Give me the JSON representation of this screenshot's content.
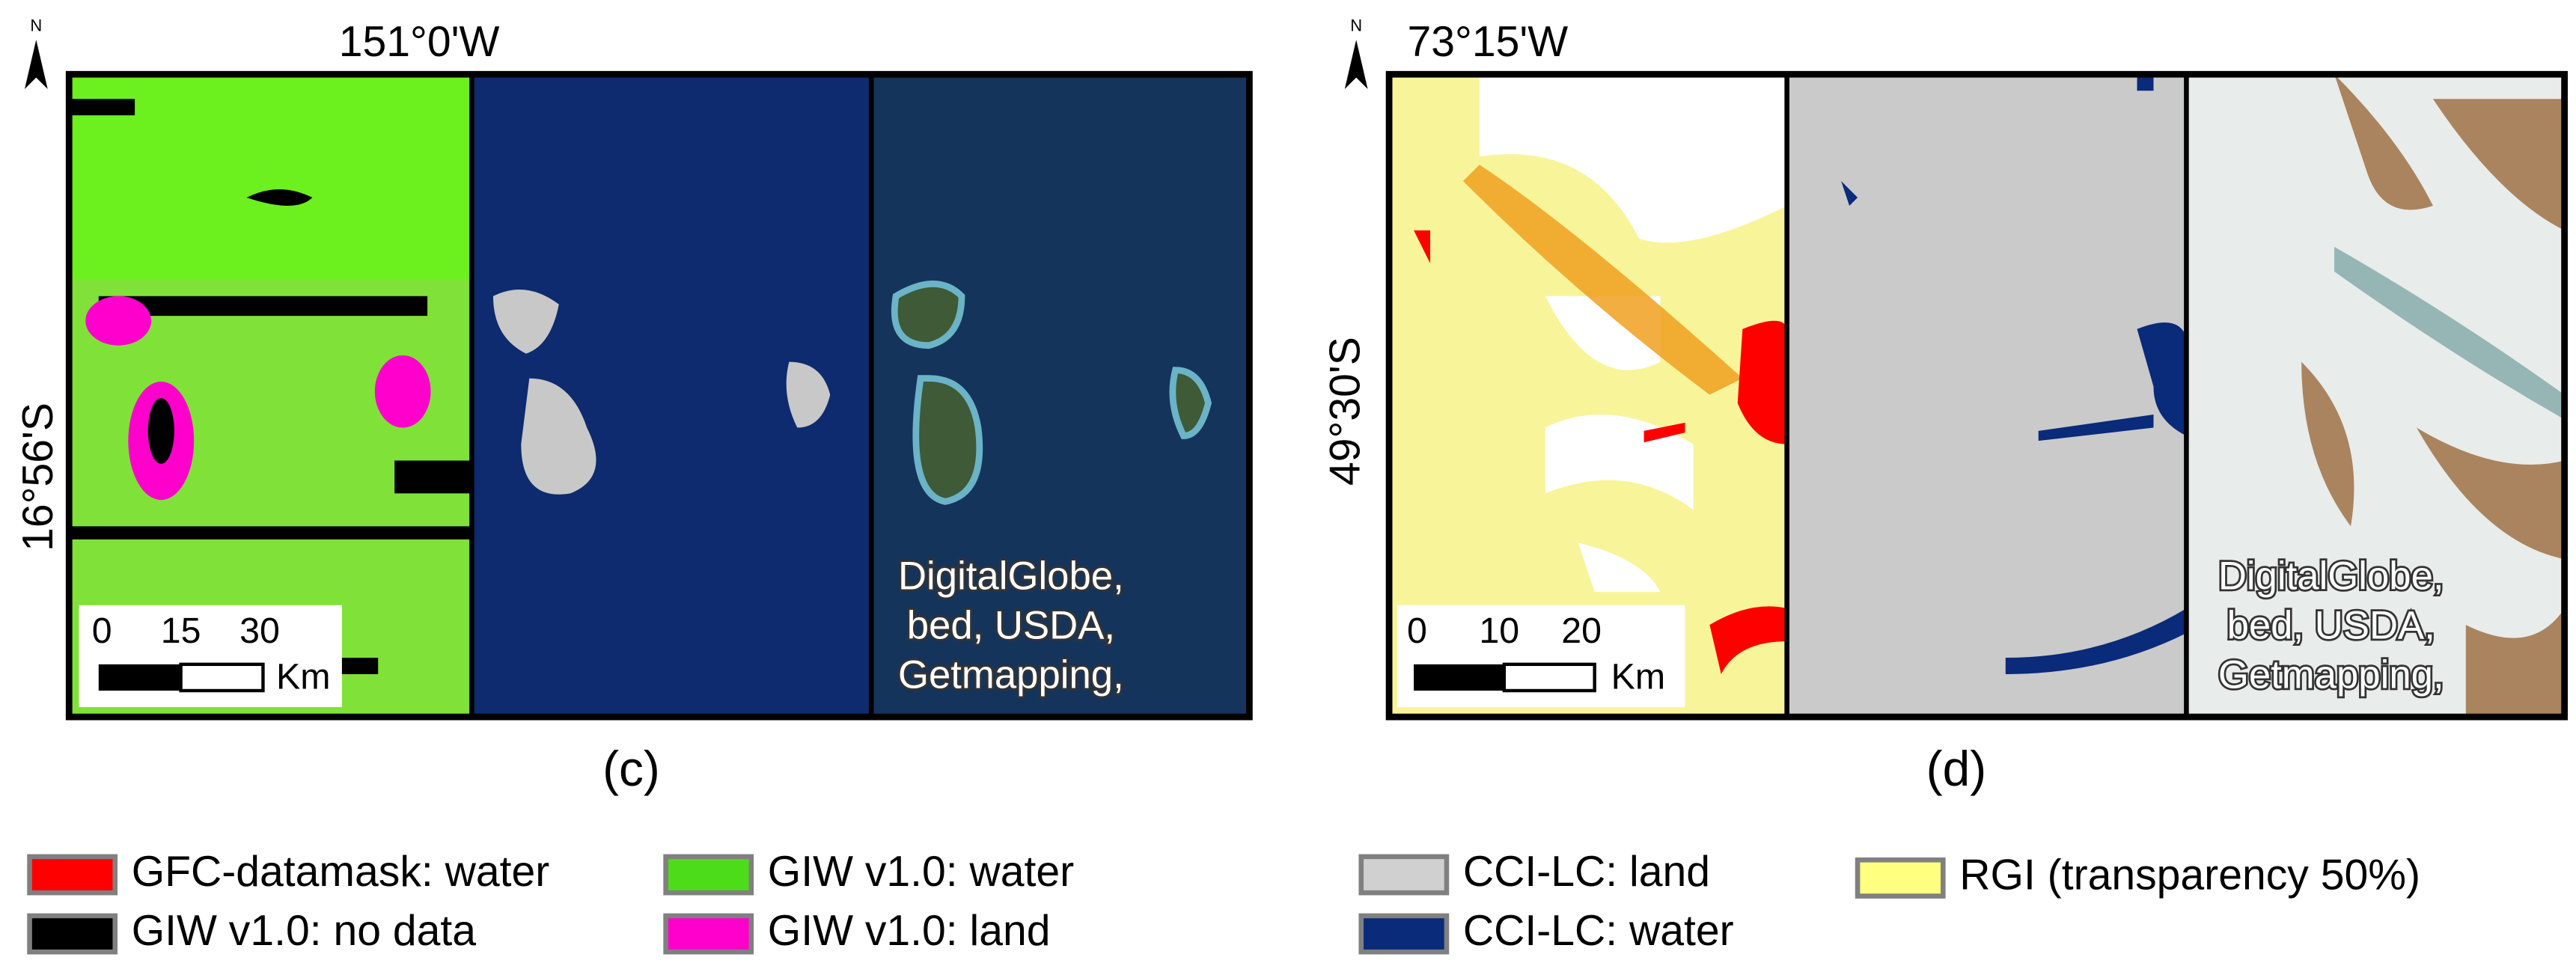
{
  "panels": [
    {
      "label": "(c)",
      "longitude": "151°0'W",
      "latitude": "16°56'S",
      "north": "N",
      "scale_ticks": [
        "0",
        "15",
        "30"
      ],
      "scale_unit": "Km",
      "attribution": [
        "DigitalGlobe,",
        "bed, USDA,",
        "Getmapping,"
      ]
    },
    {
      "label": "(d)",
      "longitude": "73°15'W",
      "latitude": "49°30'S",
      "north": "N",
      "scale_ticks": [
        "0",
        "10",
        "20"
      ],
      "scale_unit": "Km",
      "attribution": [
        "DigitalGlobe,",
        "bed, USDA,",
        "Getmapping,"
      ]
    }
  ],
  "legends": [
    {
      "items": [
        {
          "label": "GFC-datamask: water",
          "color": "#ff0000"
        },
        {
          "label": "GIW v1.0: no data",
          "color": "#000000"
        },
        {
          "label": "GIW v1.0: water",
          "color": "#4ddc1a"
        },
        {
          "label": "GIW v1.0: land",
          "color": "#ff00cc"
        }
      ]
    },
    {
      "items": [
        {
          "label": "CCI-LC: land",
          "color": "#d0d0d0"
        },
        {
          "label": "CCI-LC: water",
          "color": "#0a2a7a"
        },
        {
          "label": "RGI (transparency  50%)",
          "color": "#ffff80"
        }
      ]
    }
  ]
}
